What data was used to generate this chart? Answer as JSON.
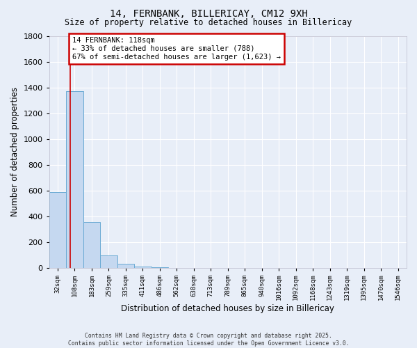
{
  "title": "14, FERNBANK, BILLERICAY, CM12 9XH",
  "subtitle": "Size of property relative to detached houses in Billericay",
  "xlabel": "Distribution of detached houses by size in Billericay",
  "ylabel": "Number of detached properties",
  "categories": [
    "32sqm",
    "108sqm",
    "183sqm",
    "259sqm",
    "335sqm",
    "411sqm",
    "486sqm",
    "562sqm",
    "638sqm",
    "713sqm",
    "789sqm",
    "865sqm",
    "940sqm",
    "1016sqm",
    "1092sqm",
    "1168sqm",
    "1243sqm",
    "1319sqm",
    "1395sqm",
    "1470sqm",
    "1546sqm"
  ],
  "values": [
    590,
    1370,
    355,
    95,
    30,
    8,
    3,
    1,
    1,
    0,
    0,
    0,
    0,
    0,
    0,
    0,
    0,
    0,
    0,
    0,
    0
  ],
  "bar_color": "#c5d8f0",
  "bar_edge_color": "#6aaad4",
  "background_color": "#e8eef8",
  "grid_color": "#ffffff",
  "red_line_x": 0.75,
  "annotation_text": "14 FERNBANK: 118sqm\n← 33% of detached houses are smaller (788)\n67% of semi-detached houses are larger (1,623) →",
  "annotation_box_facecolor": "#ffffff",
  "annotation_border_color": "#cc0000",
  "ylim": [
    0,
    1800
  ],
  "yticks": [
    0,
    200,
    400,
    600,
    800,
    1000,
    1200,
    1400,
    1600,
    1800
  ],
  "footer_line1": "Contains HM Land Registry data © Crown copyright and database right 2025.",
  "footer_line2": "Contains public sector information licensed under the Open Government Licence v3.0."
}
